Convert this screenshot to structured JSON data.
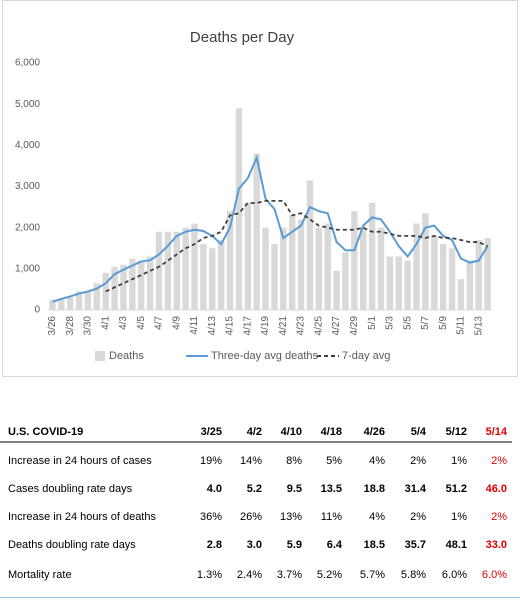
{
  "chart_data": {
    "type": "bar",
    "title": "Deaths per Day",
    "categories": [
      "3/26",
      null,
      "3/28",
      null,
      "3/30",
      null,
      "4/1",
      null,
      "4/3",
      null,
      "4/5",
      null,
      "4/7",
      null,
      "4/9",
      null,
      "4/11",
      null,
      "4/13",
      null,
      "4/15",
      null,
      "4/17",
      null,
      "4/19",
      null,
      "4/21",
      null,
      "4/23",
      null,
      "4/25",
      null,
      "4/27",
      null,
      "4/29",
      null,
      "5/1",
      null,
      "5/3",
      null,
      "5/5",
      null,
      "5/7",
      null,
      "5/9",
      null,
      "5/11",
      null,
      "5/13",
      null
    ],
    "series": [
      {
        "name": "Deaths",
        "type": "bar",
        "color": "#d9d9d9",
        "values": [
          250,
          250,
          300,
          450,
          450,
          650,
          900,
          1050,
          1100,
          1250,
          1200,
          1300,
          1900,
          1900,
          1900,
          2000,
          2100,
          1600,
          1500,
          1700,
          2400,
          4900,
          2600,
          3800,
          2000,
          1600,
          2000,
          2300,
          2200,
          3150,
          2000,
          2100,
          950,
          1400,
          2400,
          2000,
          2600,
          2000,
          1300,
          1300,
          1200,
          2100,
          2350,
          1800,
          1600,
          1500,
          750,
          1200,
          1700,
          1750
        ]
      },
      {
        "name": "Three-day avg deaths",
        "type": "line",
        "color": "#5b9bd5",
        "line_style": "solid",
        "values": [
          200,
          270,
          330,
          400,
          450,
          520,
          650,
          870,
          980,
          1080,
          1180,
          1210,
          1350,
          1560,
          1800,
          1900,
          1950,
          1920,
          1800,
          1600,
          2000,
          2950,
          3200,
          3700,
          2700,
          2450,
          1750,
          1900,
          2050,
          2500,
          2400,
          2350,
          1650,
          1450,
          1450,
          2050,
          2250,
          2200,
          1900,
          1550,
          1300,
          1600,
          2000,
          2050,
          1800,
          1700,
          1250,
          1150,
          1200,
          1550
        ]
      },
      {
        "name": "7-day avg",
        "type": "line",
        "color": "#404040",
        "line_style": "dashed",
        "values": [
          null,
          null,
          null,
          null,
          null,
          null,
          450,
          550,
          650,
          750,
          850,
          950,
          1050,
          1200,
          1350,
          1500,
          1600,
          1750,
          1800,
          1900,
          2300,
          2350,
          2600,
          2600,
          2650,
          2650,
          2650,
          2300,
          2350,
          2200,
          2050,
          2000,
          1950,
          1950,
          1950,
          2000,
          1900,
          1900,
          1850,
          1800,
          1800,
          1800,
          1750,
          1800,
          1750,
          1750,
          1700,
          1650,
          1650,
          1550
        ]
      }
    ],
    "ylim": [
      0,
      6000
    ],
    "yticks": [
      0,
      {
        "value": 1000,
        "label": "1,000"
      },
      {
        "value": 2000,
        "label": "2,000"
      },
      {
        "value": 3000,
        "label": "3,000"
      },
      {
        "value": 4000,
        "label": "4,000"
      },
      {
        "value": 5000,
        "label": "5,000"
      },
      {
        "value": 6000,
        "label": "6,000"
      }
    ],
    "grid": false,
    "legend": "bottom"
  },
  "table": {
    "header": [
      "U.S. COVID-19",
      "3/25",
      "4/2",
      "4/10",
      "4/18",
      "4/26",
      "5/4",
      "5/12",
      "5/14"
    ],
    "rows": [
      [
        "Increase in 24 hours of cases",
        "19%",
        "14%",
        "8%",
        "5%",
        "4%",
        "2%",
        "1%",
        "2%"
      ],
      [
        "Cases doubling rate days",
        "4.0",
        "5.2",
        "9.5",
        "13.5",
        "18.8",
        "31.4",
        "51.2",
        "46.0"
      ],
      [
        "Increase in 24 hours of deaths",
        "36%",
        "26%",
        "13%",
        "11%",
        "4%",
        "2%",
        "1%",
        "2%"
      ],
      [
        "Deaths doubling rate days",
        "2.8",
        "3.0",
        "5.9",
        "6.4",
        "18.5",
        "35.7",
        "48.1",
        "33.0"
      ],
      [
        "Mortality rate",
        "1.3%",
        "2.4%",
        "3.7%",
        "5.2%",
        "5.7%",
        "5.8%",
        "6.0%",
        "6.0%"
      ]
    ]
  }
}
